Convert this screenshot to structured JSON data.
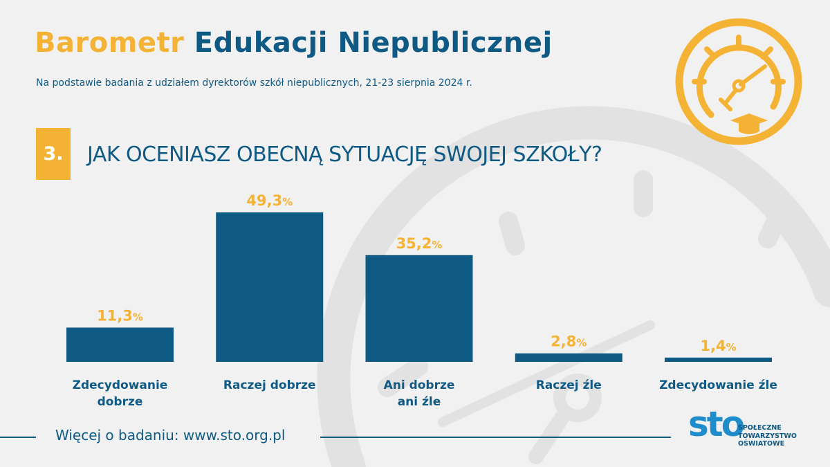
{
  "header": {
    "title_part1": "Barometr",
    "title_part2": "Edukacji Niepublicznej",
    "subtitle": "Na podstawie badania z udziałem dyrektorów szkół niepublicznych, 21-23 sierpnia 2024 r."
  },
  "question": {
    "number": "3.",
    "text": "JAK OCENIASZ OBECNĄ SYTUACJĘ SWOJEJ SZKOŁY?"
  },
  "colors": {
    "accent": "#f5b335",
    "primary": "#0f5a84",
    "background": "#f1f1f1",
    "logo_blue": "#1f8ccc"
  },
  "chart_data": {
    "type": "bar",
    "categories": [
      "Zdecydowanie dobrze",
      "Raczej dobrze",
      "Ani dobrze ani źle",
      "Raczej źle",
      "Zdecydowanie źle"
    ],
    "values": [
      11.3,
      49.3,
      35.2,
      2.8,
      1.4
    ],
    "value_labels": [
      "11,3",
      "49,3",
      "35,2",
      "2,8",
      "1,4"
    ],
    "unit": "%",
    "bar_color": "#0f5a84",
    "label_color": "#f5b335",
    "ylim": [
      0,
      49.3
    ],
    "grid": false
  },
  "footer": {
    "text": "Więcej o badaniu: www.sto.org.pl"
  },
  "logo": {
    "mark": "sto",
    "line1": "SPOŁECZNE",
    "line2": "TOWARZYSTWO",
    "line3": "OŚWIATOWE"
  },
  "icons": {
    "emblem": "gauge-with-graduation-cap-icon",
    "background": "gauge-watermark-icon"
  }
}
